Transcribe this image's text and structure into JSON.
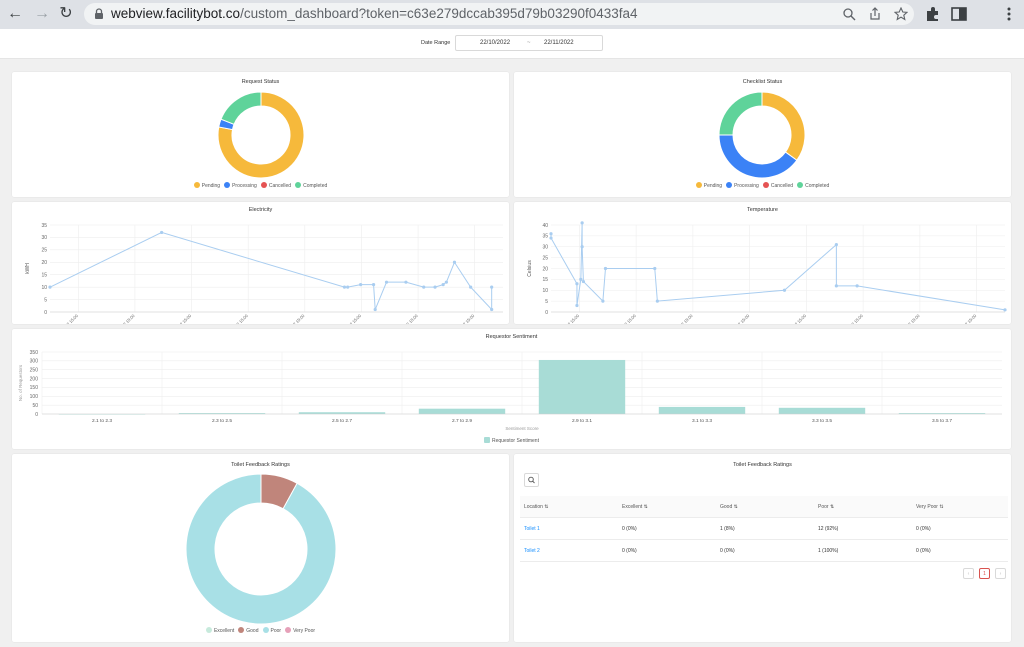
{
  "browser": {
    "url_host": "webview.facilitybot.co",
    "url_path": "/custom_dashboard?token=c63e279dccab395d79b03290f0433fa4"
  },
  "filter": {
    "label": "Date Range",
    "start": "22/10/2022",
    "separator": "~",
    "end": "22/11/2022"
  },
  "colors": {
    "pending": "#f6b93b",
    "processing": "#3b82f6",
    "cancelled": "#e55353",
    "completed": "#5fd39a",
    "line": "#a9cdf0",
    "bar": "#a8dcd6",
    "excellent": "#c7eadc",
    "good": "#c0857b",
    "poor": "#a8e0e6",
    "very_poor": "#e6a0b8"
  },
  "request_status": {
    "title": "Request Status",
    "chart_data": {
      "type": "pie",
      "labels": [
        "Pending",
        "Processing",
        "Cancelled",
        "Completed"
      ],
      "values": [
        78,
        3,
        0,
        19
      ]
    }
  },
  "checklist_status": {
    "title": "Checklist Status",
    "chart_data": {
      "type": "pie",
      "labels": [
        "Pending",
        "Processing",
        "Cancelled",
        "Completed"
      ],
      "values": [
        35,
        40,
        0,
        25
      ]
    }
  },
  "electricity": {
    "title": "Electricity",
    "chart_data": {
      "type": "line",
      "ylabel": "kWH",
      "ylim": [
        0,
        35
      ],
      "yticks": [
        0,
        5,
        10,
        15,
        20,
        25,
        30,
        35
      ],
      "xticks": [
        "30/10/2022 15:00",
        "02/11/2022 15:00",
        "05/11/2022 15:00",
        "08/11/2022 15:00",
        "11/11/2022 15:00",
        "14/11/2022 15:00",
        "17/11/2022 15:00",
        "20/11/2022 15:00"
      ],
      "xlim": [
        -3,
        25
      ],
      "x": [
        -3,
        3.9,
        15.2,
        15.4,
        16.2,
        17.0,
        17.1,
        17.8,
        19.0,
        20.1,
        20.8,
        21.3,
        21.5,
        22.0,
        23.0,
        24.3,
        24.3
      ],
      "values": [
        10,
        32,
        10,
        10,
        11,
        11,
        1,
        12,
        12,
        10,
        10,
        11,
        12,
        20,
        10,
        1,
        10
      ]
    }
  },
  "temperature": {
    "title": "Temperature",
    "chart_data": {
      "type": "line",
      "ylabel": "Celsius",
      "ylim": [
        0,
        40
      ],
      "yticks": [
        0,
        5,
        10,
        15,
        20,
        25,
        30,
        35,
        40
      ],
      "xticks": [
        "02/11/2022 15:00",
        "04/11/2022 15:00",
        "06/11/2022 15:00",
        "08/11/2022 15:00",
        "10/11/2022 15:00",
        "12/11/2022 15:00",
        "14/11/2022 15:00",
        "16/11/2022 15:00"
      ],
      "xlim": [
        -1,
        16.5
      ],
      "x": [
        -1,
        -1,
        0.0,
        0.0,
        0.15,
        0.2,
        0.2,
        0.25,
        1.0,
        1.1,
        3.0,
        3.1,
        8.0,
        10.0,
        10.0,
        10.8,
        16.5
      ],
      "values": [
        36,
        34,
        13,
        3,
        15,
        41,
        30,
        14,
        5,
        20,
        20,
        5,
        10,
        31,
        12,
        12,
        1
      ]
    }
  },
  "sentiment": {
    "title": "Requestor Sentiment",
    "legend": "Requestor Sentiment",
    "chart_data": {
      "type": "bar",
      "ylabel": "No. of Requestors",
      "xlabel": "Sentiment Score",
      "ylim": [
        0,
        350
      ],
      "yticks": [
        0,
        50,
        100,
        150,
        200,
        250,
        300,
        350
      ],
      "categories": [
        "2.1 to 2.3",
        "2.3 to 2.5",
        "2.5 to 2.7",
        "2.7 to 2.9",
        "2.9 to 3.1",
        "3.1 to 3.3",
        "3.3 to 3.5",
        "3.5 to 3.7"
      ],
      "values": [
        0,
        5,
        10,
        30,
        305,
        40,
        35,
        5
      ]
    }
  },
  "toilet_chart": {
    "title": "Toilet Feedback Ratings",
    "chart_data": {
      "type": "pie",
      "labels": [
        "Excellent",
        "Good",
        "Poor",
        "Very Poor"
      ],
      "values": [
        0,
        8,
        92,
        0
      ]
    }
  },
  "toilet_table": {
    "title": "Toilet Feedback Ratings",
    "columns": [
      "Location",
      "Excellent",
      "Good",
      "Poor",
      "Very Poor"
    ],
    "rows": [
      [
        "Toilet 1",
        "0 (0%)",
        "1 (8%)",
        "12 (92%)",
        "0 (0%)"
      ],
      [
        "Toilet 2",
        "0 (0%)",
        "0 (0%)",
        "1 (100%)",
        "0 (0%)"
      ]
    ],
    "pagination": {
      "current": "1",
      "prev": "‹",
      "next": "›"
    }
  }
}
